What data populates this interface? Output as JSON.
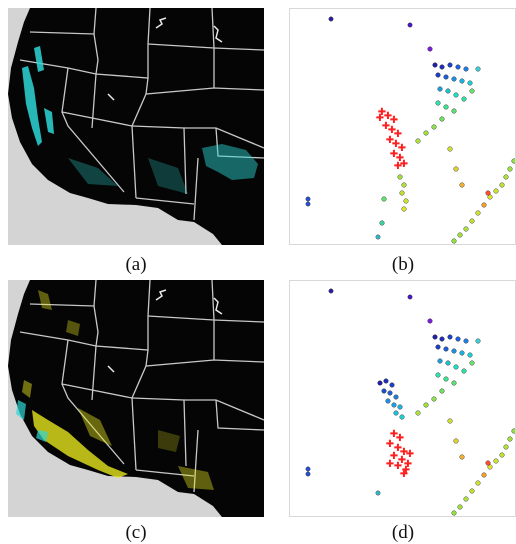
{
  "captions": {
    "a": "(a)",
    "b": "(b)",
    "c": "(c)",
    "d": "(d)"
  },
  "colors": {
    "map_background": "#d4d4d4",
    "land": "#050505",
    "state_borders": "#c8c8c8",
    "cyan_highlight": "#2fd7d7",
    "yellow_highlight": "#e5e51f",
    "red_cluster": "#ff1f1f"
  }
}
